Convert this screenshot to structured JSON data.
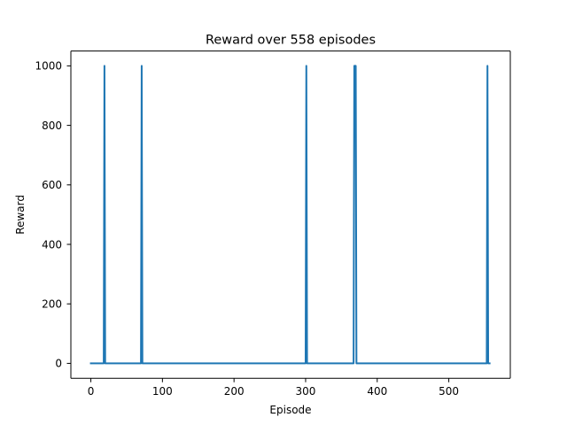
{
  "chart_data": {
    "type": "line",
    "title": "Reward over 558 episodes",
    "xlabel": "Episode",
    "ylabel": "Reward",
    "xlim": [
      -27.9,
      585.9
    ],
    "ylim": [
      -50,
      1050
    ],
    "x_ticks": [
      0,
      100,
      200,
      300,
      400,
      500
    ],
    "y_ticks": [
      0,
      200,
      400,
      600,
      800,
      1000
    ],
    "grid": false,
    "legend": "none",
    "series": [
      {
        "color": "#1f77b4",
        "x": [
          0,
          18,
          19,
          20,
          70,
          71,
          72,
          300,
          301,
          302,
          367,
          368,
          369,
          370,
          371,
          553,
          554,
          555,
          557
        ],
        "y": [
          0,
          0,
          1000,
          0,
          0,
          1000,
          0,
          0,
          1000,
          0,
          0,
          1000,
          1000,
          1000,
          0,
          0,
          1000,
          0,
          0
        ]
      }
    ]
  }
}
